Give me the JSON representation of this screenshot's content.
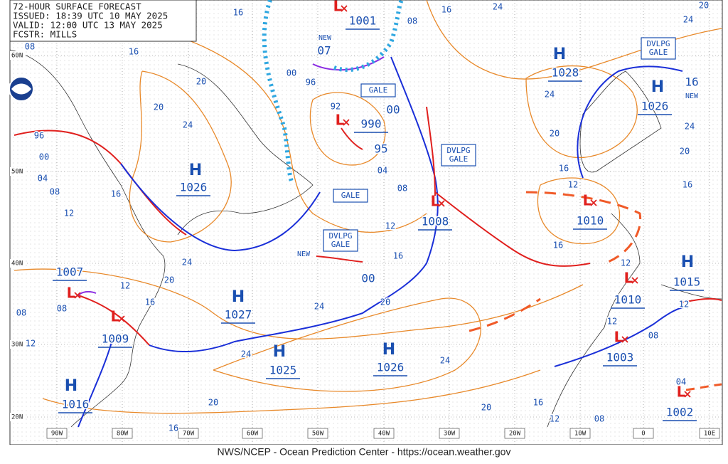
{
  "header": {
    "lines": [
      "72-HOUR SURFACE FORECAST",
      "ISSUED: 18:39 UTC 10 MAY 2025",
      "VALID: 12:00 UTC 13 MAY 2025",
      "FCSTR: MILLS"
    ]
  },
  "footer": "NWS/NCEP - Ocean Prediction Center - https://ocean.weather.gov",
  "lat_labels": [
    "60N",
    "50N",
    "40N",
    "30N",
    "20N"
  ],
  "lon_labels": [
    "90W",
    "80W",
    "70W",
    "60W",
    "50W",
    "40W",
    "30W",
    "20W",
    "10W",
    "0",
    "10E"
  ],
  "centers": [
    {
      "symbol": "H",
      "pressure": "1028"
    },
    {
      "symbol": "H",
      "pressure": "1026"
    },
    {
      "symbol": "H",
      "pressure": "1026"
    },
    {
      "symbol": "H",
      "pressure": "1027"
    },
    {
      "symbol": "H",
      "pressure": "1025"
    },
    {
      "symbol": "H",
      "pressure": "1026"
    },
    {
      "symbol": "H",
      "pressure": "1016"
    },
    {
      "symbol": "H",
      "pressure": "1015"
    },
    {
      "symbol": "L",
      "pressure": "1001"
    },
    {
      "symbol": "L",
      "pressure": "990"
    },
    {
      "symbol": "L",
      "pressure": "1008"
    },
    {
      "symbol": "L",
      "pressure": "1010"
    },
    {
      "symbol": "L",
      "pressure": "1010"
    },
    {
      "symbol": "L",
      "pressure": "1003"
    },
    {
      "symbol": "L",
      "pressure": "1002"
    },
    {
      "symbol": "L",
      "pressure": "1007"
    },
    {
      "symbol": "L",
      "pressure": "1009"
    }
  ],
  "warnings": [
    [
      "DVLPG",
      "GALE"
    ],
    [
      "GALE"
    ],
    [
      "DVLPG",
      "GALE"
    ],
    [
      "GALE"
    ],
    [
      "DVLPG",
      "GALE"
    ]
  ],
  "forecast_notes": [
    "NEW",
    "07",
    "00",
    "95",
    "NEW",
    "00",
    "16",
    "NEW"
  ],
  "isobar_labels": [
    "16",
    "16",
    "24",
    "20",
    "24",
    "08",
    "08",
    "16",
    "00",
    "96",
    "92",
    "20",
    "20",
    "24",
    "96",
    "00",
    "04",
    "08",
    "16",
    "12",
    "24",
    "20",
    "24",
    "20",
    "16",
    "12",
    "16",
    "04",
    "08",
    "12",
    "16",
    "24",
    "20",
    "12",
    "08",
    "08",
    "12",
    "16",
    "24",
    "20",
    "16",
    "12",
    "12",
    "12",
    "08",
    "24",
    "24",
    "20",
    "20",
    "16",
    "12",
    "08",
    "16",
    "04"
  ]
}
